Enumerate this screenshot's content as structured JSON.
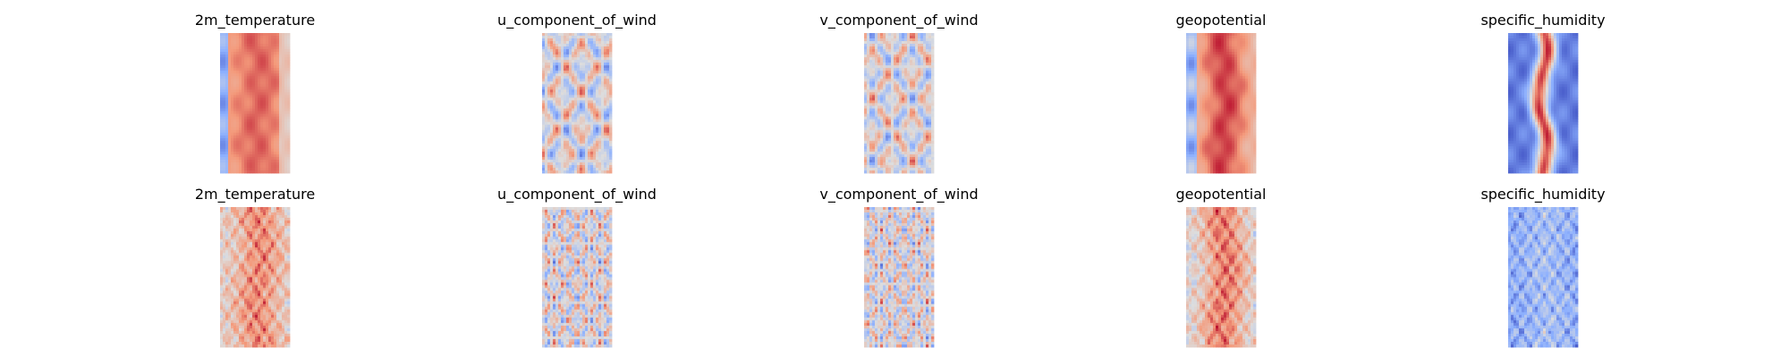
{
  "chart_data": [
    {
      "type": "heatmap",
      "title": "2m_temperature",
      "colormap": "coolwarm",
      "axes": "off"
    },
    {
      "type": "heatmap",
      "title": "u_component_of_wind",
      "colormap": "coolwarm",
      "axes": "off"
    },
    {
      "type": "heatmap",
      "title": "v_component_of_wind",
      "colormap": "coolwarm",
      "axes": "off"
    },
    {
      "type": "heatmap",
      "title": "geopotential",
      "colormap": "coolwarm",
      "axes": "off"
    },
    {
      "type": "heatmap",
      "title": "specific_humidity",
      "colormap": "coolwarm",
      "axes": "off"
    },
    {
      "type": "heatmap",
      "title": "2m_temperature",
      "colormap": "coolwarm",
      "axes": "off"
    },
    {
      "type": "heatmap",
      "title": "u_component_of_wind",
      "colormap": "coolwarm",
      "axes": "off"
    },
    {
      "type": "heatmap",
      "title": "v_component_of_wind",
      "colormap": "coolwarm",
      "axes": "off"
    },
    {
      "type": "heatmap",
      "title": "geopotential",
      "colormap": "coolwarm",
      "axes": "off"
    },
    {
      "type": "heatmap",
      "title": "specific_humidity",
      "colormap": "coolwarm",
      "axes": "off"
    }
  ],
  "colors": {
    "cold": "#3b4cc0",
    "neutral": "#dddddd",
    "warm": "#b40426"
  }
}
